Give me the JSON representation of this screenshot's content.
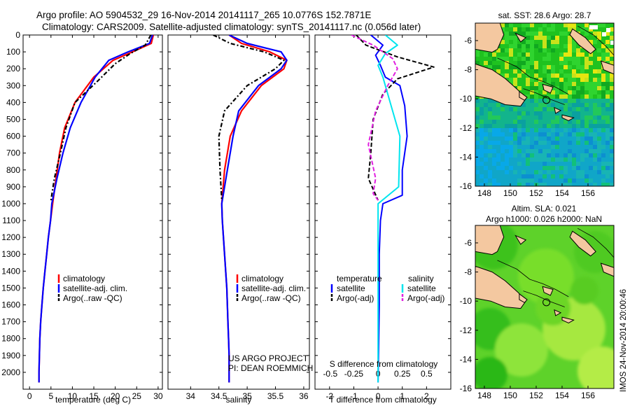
{
  "header": {
    "line1": "Argo profile: AO 5904532_29 16-Nov-2014 20141117_265 10.0776S 152.7871E",
    "line2": "Climatology: CARS2009. Satellite-adjusted climatology: synTS_20141117.nc (0.056d later)"
  },
  "colors": {
    "climatology": "#ff0000",
    "satellite": "#0000ff",
    "argo": "#000000",
    "sal_satellite": "#00e5ee",
    "sal_argo": "#e020e0",
    "land": "#f4c8a0"
  },
  "footer": {
    "project": "US ARGO PROJECT",
    "pi": "PI: DEAN ROEMMICH",
    "timestamp": "IMOS 24-Nov-2014 20:00:46"
  },
  "legend_profiles": {
    "climatology": "climatology",
    "satellite": "satellite-adj. clim.",
    "argo": "Argo(..raw -QC)"
  },
  "legend_diff": {
    "temp_header": "temperature",
    "sal_header": "salinity",
    "satellite": "satellite",
    "argo": "Argo(-adj)"
  },
  "maps": {
    "sst_title": "sat. SST: 28.6 Argo: 28.7",
    "sla_title1": "Altim. SLA: 0.021",
    "sla_title2": "Argo h1000: 0.026 h2000: NaN",
    "lon_ticks": [
      "148",
      "150",
      "152",
      "154",
      "156"
    ],
    "lat_ticks": [
      "-6",
      "-8",
      "-10",
      "-12",
      "-14",
      "-16"
    ],
    "profile_lon": 152.79,
    "profile_lat": -10.08,
    "lon_range": [
      147.3,
      158.0
    ],
    "lat_range": [
      -16,
      -4.8
    ]
  },
  "chart_data": [
    {
      "type": "line",
      "id": "temperature",
      "xlabel": "temperature (deg C)",
      "ylabel": "",
      "xlim": [
        -1.5,
        31
      ],
      "ylim": [
        2100,
        0
      ],
      "xticks": [
        0,
        5,
        10,
        15,
        20,
        25,
        30
      ],
      "yticks": [
        0,
        100,
        200,
        300,
        400,
        500,
        600,
        700,
        800,
        900,
        1000,
        1100,
        1200,
        1300,
        1400,
        1500,
        1600,
        1700,
        1800,
        1900,
        2000
      ],
      "series": [
        {
          "name": "climatology",
          "x": [
            28.9,
            28.4,
            24,
            19.5,
            15,
            10.6,
            8.2,
            7,
            6.2,
            5.4,
            4.9,
            4.4,
            4.0,
            3.6,
            3.2,
            2.9,
            2.6,
            2.4,
            2.3,
            2.2,
            2.2
          ],
          "y": [
            0,
            50,
            100,
            150,
            250,
            400,
            550,
            700,
            850,
            1000,
            1100,
            1200,
            1300,
            1400,
            1500,
            1600,
            1700,
            1800,
            1900,
            2000,
            2060
          ]
        },
        {
          "name": "satellite-adj. clim.",
          "x": [
            28.7,
            28,
            23,
            18.5,
            15.3,
            12,
            9.5,
            7.8,
            6.4,
            5.2,
            4.9,
            4.4,
            4.0,
            3.6,
            3.2,
            2.9,
            2.6,
            2.4,
            2.3,
            2.2,
            2.2
          ],
          "y": [
            0,
            50,
            100,
            150,
            250,
            400,
            550,
            700,
            850,
            1000,
            1100,
            1200,
            1300,
            1400,
            1500,
            1600,
            1700,
            1800,
            1900,
            2000,
            2060
          ]
        },
        {
          "name": "Argo(..raw -QC)",
          "x": [
            28.3,
            27,
            23.5,
            20,
            16,
            10.6,
            8.5,
            7.2,
            5.8,
            5.0
          ],
          "y": [
            0,
            60,
            110,
            170,
            270,
            400,
            550,
            700,
            850,
            980
          ]
        }
      ]
    },
    {
      "type": "line",
      "id": "salinity",
      "xlabel": "salinity",
      "ylabel": "",
      "xlim": [
        33.6,
        36.1
      ],
      "ylim": [
        2100,
        0
      ],
      "xticks": [
        34,
        34.5,
        35,
        35.5,
        36
      ],
      "series": [
        {
          "name": "climatology",
          "x": [
            34.68,
            34.9,
            35.4,
            35.7,
            35.65,
            35.25,
            34.9,
            34.7,
            34.6,
            34.55,
            34.56,
            34.58,
            34.6,
            34.62,
            34.64,
            34.65,
            34.66,
            34.67,
            34.68,
            34.68,
            34.68
          ],
          "y": [
            0,
            50,
            100,
            150,
            200,
            300,
            450,
            600,
            800,
            1000,
            1100,
            1200,
            1300,
            1400,
            1500,
            1600,
            1700,
            1800,
            1900,
            2000,
            2060
          ]
        },
        {
          "name": "satellite-adj. clim.",
          "x": [
            34.68,
            35.0,
            35.6,
            35.7,
            35.6,
            35.2,
            34.85,
            34.75,
            34.65,
            34.55,
            34.56,
            34.58,
            34.6,
            34.62,
            34.64,
            34.65,
            34.66,
            34.67,
            34.68,
            34.68,
            34.68
          ],
          "y": [
            0,
            50,
            100,
            150,
            200,
            300,
            450,
            600,
            800,
            1000,
            1100,
            1200,
            1300,
            1400,
            1500,
            1600,
            1700,
            1800,
            1900,
            2000,
            2060
          ]
        },
        {
          "name": "Argo(..raw -QC)",
          "x": [
            34.4,
            34.7,
            35.3,
            35.65,
            35.5,
            35.0,
            34.6,
            34.5,
            34.52,
            34.55
          ],
          "y": [
            0,
            50,
            100,
            150,
            200,
            300,
            450,
            600,
            800,
            980
          ]
        }
      ]
    },
    {
      "type": "line",
      "id": "difference",
      "xlabel": "T difference from climatology",
      "xlabel_top": "S difference from climatology",
      "xlim": [
        -2.6,
        3.0
      ],
      "ylim": [
        2100,
        0
      ],
      "xticks": [
        -2,
        -1,
        0,
        1,
        2
      ],
      "xticks_top_labels": [
        "-0.5",
        "-0.25",
        "0",
        "0.25",
        "0.5"
      ],
      "xticks_top_positions": [
        -2,
        -1,
        0,
        1,
        2
      ],
      "series": [
        {
          "name": "temperature satellite",
          "x": [
            -0.3,
            0.2,
            -0.1,
            0.1,
            0.3,
            0.9,
            1.1,
            1.2,
            1.0,
            1.0,
            0.2,
            0.1,
            0.05,
            0.05,
            0.0
          ],
          "y": [
            0,
            60,
            120,
            180,
            250,
            300,
            420,
            600,
            800,
            950,
            1000,
            1100,
            1300,
            1600,
            2060
          ]
        },
        {
          "name": "temperature Argo(-adj)",
          "x": [
            -0.9,
            -0.5,
            0.8,
            2.3,
            0.8,
            0.2,
            -0.2,
            -0.3,
            -0.4,
            0.0
          ],
          "y": [
            0,
            60,
            130,
            190,
            260,
            350,
            500,
            700,
            850,
            980
          ]
        },
        {
          "name": "salinity satellite",
          "x": [
            0.3,
            0.8,
            0.3,
            0.0,
            0.2,
            0.5,
            0.9,
            0.85,
            0.0,
            0.0,
            0.0
          ],
          "y": [
            0,
            60,
            110,
            180,
            250,
            400,
            600,
            900,
            1000,
            1300,
            2060
          ]
        },
        {
          "name": "salinity Argo(-adj)",
          "x": [
            -1.1,
            -0.2,
            0.6,
            0.8,
            0.4,
            -0.1,
            -0.4,
            -0.1,
            -0.2,
            0.0
          ],
          "y": [
            0,
            60,
            140,
            200,
            300,
            450,
            650,
            850,
            940,
            980
          ]
        }
      ]
    }
  ]
}
